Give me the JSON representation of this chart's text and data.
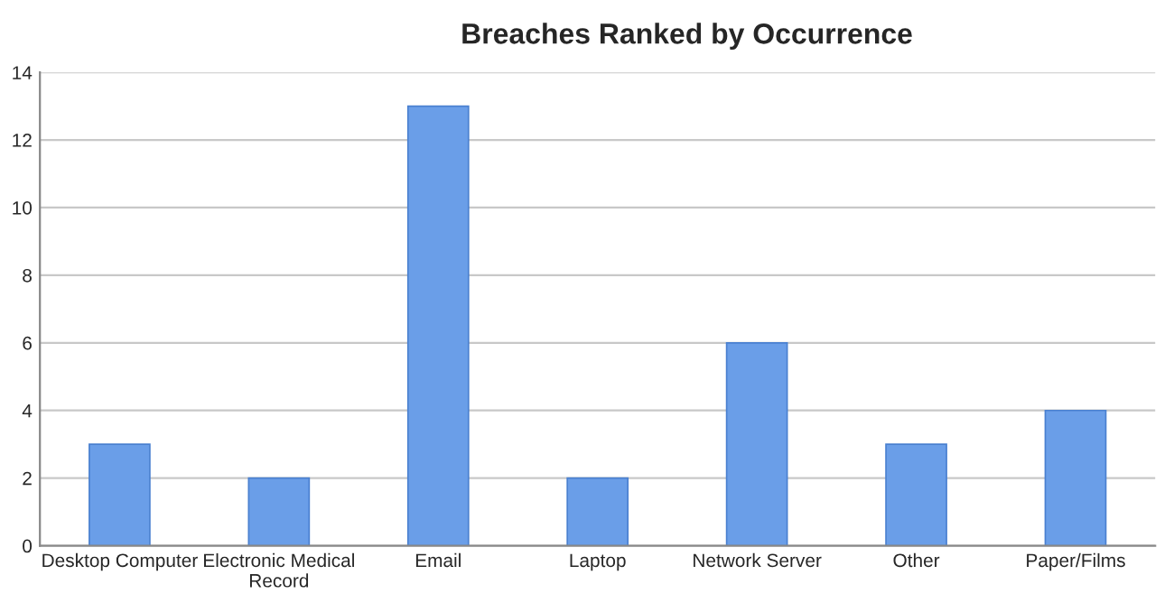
{
  "chart_data": {
    "type": "bar",
    "title": "Breaches Ranked by Occurrence",
    "categories": [
      "Desktop Computer",
      "Electronic Medical\nRecord",
      "Email",
      "Laptop",
      "Network Server",
      "Other",
      "Paper/Films"
    ],
    "values": [
      3,
      2,
      13,
      2,
      6,
      3,
      4
    ],
    "color": "#6a9ee8",
    "ylim": [
      0,
      14
    ],
    "yticks": [
      0,
      2,
      4,
      6,
      8,
      10,
      12,
      14
    ],
    "grid": "y"
  }
}
